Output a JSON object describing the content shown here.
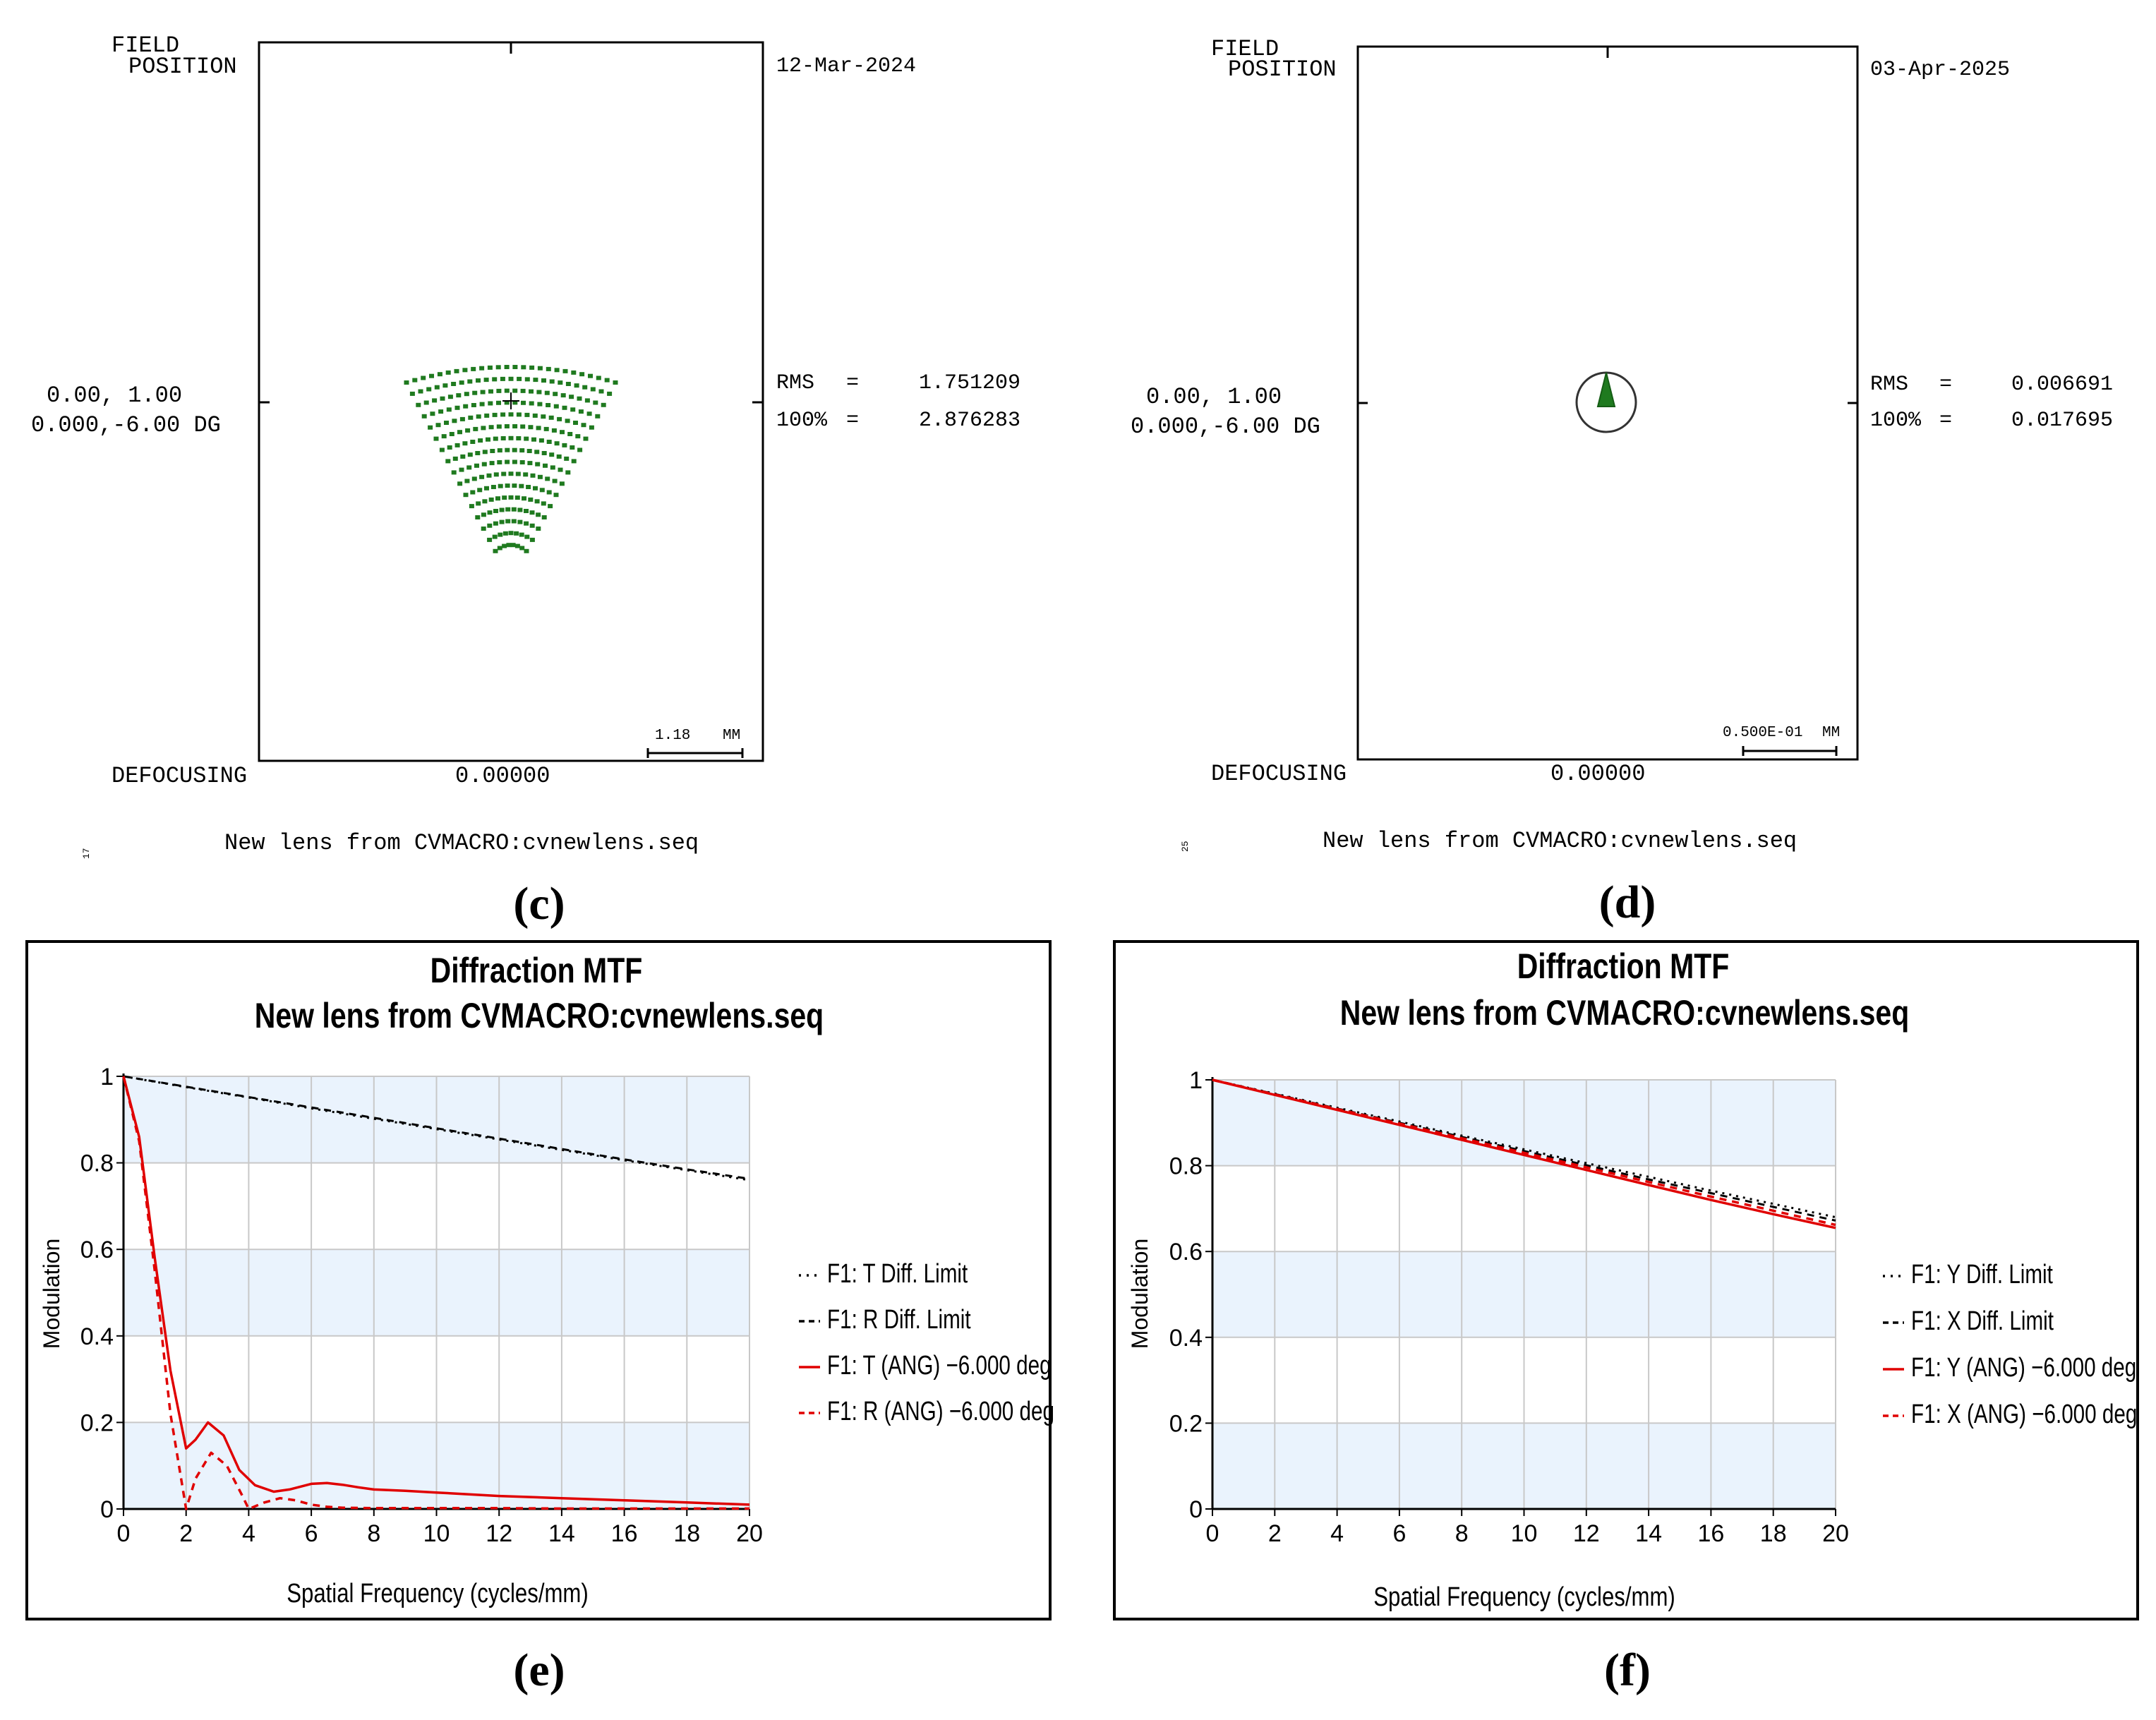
{
  "panels": {
    "c": {
      "caption": "(c)",
      "field_label_1": "FIELD",
      "field_label_2": "POSITION",
      "date": "12-Mar-2024",
      "field_value_1": "0.00, 1.00",
      "field_value_2": "0.000,-6.00 DG",
      "rms_label": "RMS",
      "rms_eq": "=",
      "rms_value": "1.751209",
      "pct_label": "100%",
      "pct_eq": "=",
      "pct_value": "2.876283",
      "scale_value": "1.18",
      "scale_unit": "MM",
      "defocus_label": "DEFOCUSING",
      "defocus_value": "0.00000",
      "footer": "New lens from CVMACRO:cvnewlens.seq",
      "side_num": "17",
      "spot_color": "#1f7a1f"
    },
    "d": {
      "caption": "(d)",
      "field_label_1": "FIELD",
      "field_label_2": "POSITION",
      "date": "03-Apr-2025",
      "field_value_1": "0.00, 1.00",
      "field_value_2": "0.000,-6.00 DG",
      "rms_label": "RMS",
      "rms_eq": "=",
      "rms_value": "0.006691",
      "pct_label": "100%",
      "pct_eq": "=",
      "pct_value": "0.017695",
      "scale_value": "0.500E-01",
      "scale_unit": "MM",
      "defocus_label": "DEFOCUSING",
      "defocus_value": "0.00000",
      "footer": "New lens from CVMACRO:cvnewlens.seq",
      "side_num": "25",
      "spot_color": "#1f7a1f"
    },
    "e": {
      "caption": "(e)"
    },
    "f": {
      "caption": "(f)"
    }
  },
  "chart_data": [
    {
      "id": "e",
      "type": "line",
      "title": "Diffraction MTF",
      "subtitle": "New lens from CVMACRO:cvnewlens.seq",
      "xlabel": "Spatial Frequency (cycles/mm)",
      "ylabel": "Modulation",
      "xlim": [
        0,
        20
      ],
      "ylim": [
        0,
        1
      ],
      "xticks": [
        "0",
        "2",
        "4",
        "6",
        "8",
        "10",
        "12",
        "14",
        "16",
        "18",
        "20"
      ],
      "yticks": [
        "0",
        "0.2",
        "0.4",
        "0.6",
        "0.8",
        "1"
      ],
      "legend_position": "right",
      "series": [
        {
          "name": "F1: T Diff. Limit",
          "color": "#000000",
          "dash": "dot",
          "x": [
            0,
            2,
            4,
            6,
            8,
            10,
            12,
            14,
            16,
            18,
            20
          ],
          "values": [
            1.0,
            0.975,
            0.951,
            0.926,
            0.902,
            0.878,
            0.854,
            0.83,
            0.806,
            0.783,
            0.76
          ]
        },
        {
          "name": "F1: R Diff. Limit",
          "color": "#000000",
          "dash": "dash",
          "x": [
            0,
            2,
            4,
            6,
            8,
            10,
            12,
            14,
            16,
            18,
            20
          ],
          "values": [
            1.0,
            0.976,
            0.952,
            0.928,
            0.904,
            0.88,
            0.856,
            0.832,
            0.808,
            0.785,
            0.763
          ]
        },
        {
          "name": "F1: T (ANG) −6.000 deg",
          "color": "#e00000",
          "dash": "solid",
          "x": [
            0,
            0.5,
            1,
            1.5,
            2,
            2.3,
            2.7,
            3.2,
            3.7,
            4.2,
            4.8,
            5.3,
            6,
            6.5,
            7,
            7.5,
            8,
            9,
            10,
            12,
            14,
            16,
            18,
            20
          ],
          "values": [
            1.0,
            0.86,
            0.58,
            0.32,
            0.14,
            0.16,
            0.2,
            0.17,
            0.09,
            0.055,
            0.04,
            0.045,
            0.058,
            0.06,
            0.056,
            0.05,
            0.045,
            0.042,
            0.038,
            0.03,
            0.025,
            0.02,
            0.015,
            0.01
          ]
        },
        {
          "name": "F1: R (ANG) −6.000 deg",
          "color": "#e00000",
          "dash": "dash",
          "x": [
            0,
            0.5,
            1,
            1.5,
            2,
            2.3,
            2.8,
            3.3,
            3.8,
            4,
            4.5,
            5,
            5.5,
            6,
            6.5,
            7,
            8,
            10,
            12,
            14,
            16,
            18,
            20
          ],
          "values": [
            1.0,
            0.85,
            0.55,
            0.22,
            0.0,
            0.07,
            0.13,
            0.1,
            0.03,
            0.0,
            0.015,
            0.025,
            0.02,
            0.01,
            0.005,
            0.003,
            0.002,
            0.002,
            0.002,
            0.001,
            0.001,
            0.001,
            0.001
          ]
        }
      ]
    },
    {
      "id": "f",
      "type": "line",
      "title": "Diffraction MTF",
      "subtitle": "New lens from CVMACRO:cvnewlens.seq",
      "xlabel": "Spatial Frequency (cycles/mm)",
      "ylabel": "Modulation",
      "xlim": [
        0,
        20
      ],
      "ylim": [
        0,
        1
      ],
      "xticks": [
        "0",
        "2",
        "4",
        "6",
        "8",
        "10",
        "12",
        "14",
        "16",
        "18",
        "20"
      ],
      "yticks": [
        "0",
        "0.2",
        "0.4",
        "0.6",
        "0.8",
        "1"
      ],
      "legend_position": "right",
      "series": [
        {
          "name": "F1: Y Diff. Limit",
          "color": "#000000",
          "dash": "dot",
          "x": [
            0,
            2,
            4,
            6,
            8,
            10,
            12,
            14,
            16,
            18,
            20
          ],
          "values": [
            1.0,
            0.968,
            0.935,
            0.903,
            0.87,
            0.838,
            0.806,
            0.774,
            0.742,
            0.711,
            0.68
          ]
        },
        {
          "name": "F1: X Diff. Limit",
          "color": "#000000",
          "dash": "dash",
          "x": [
            0,
            2,
            4,
            6,
            8,
            10,
            12,
            14,
            16,
            18,
            20
          ],
          "values": [
            1.0,
            0.967,
            0.933,
            0.9,
            0.867,
            0.834,
            0.801,
            0.768,
            0.736,
            0.704,
            0.672
          ]
        },
        {
          "name": "F1: Y (ANG) −6.000 deg",
          "color": "#e00000",
          "dash": "solid",
          "x": [
            0,
            2,
            4,
            6,
            8,
            10,
            12,
            14,
            16,
            18,
            20
          ],
          "values": [
            1.0,
            0.965,
            0.93,
            0.895,
            0.86,
            0.825,
            0.79,
            0.755,
            0.72,
            0.687,
            0.655
          ]
        },
        {
          "name": "F1: X (ANG) −6.000 deg",
          "color": "#e00000",
          "dash": "dash",
          "x": [
            0,
            2,
            4,
            6,
            8,
            10,
            12,
            14,
            16,
            18,
            20
          ],
          "values": [
            1.0,
            0.966,
            0.932,
            0.898,
            0.864,
            0.83,
            0.796,
            0.762,
            0.728,
            0.695,
            0.662
          ]
        }
      ]
    }
  ]
}
